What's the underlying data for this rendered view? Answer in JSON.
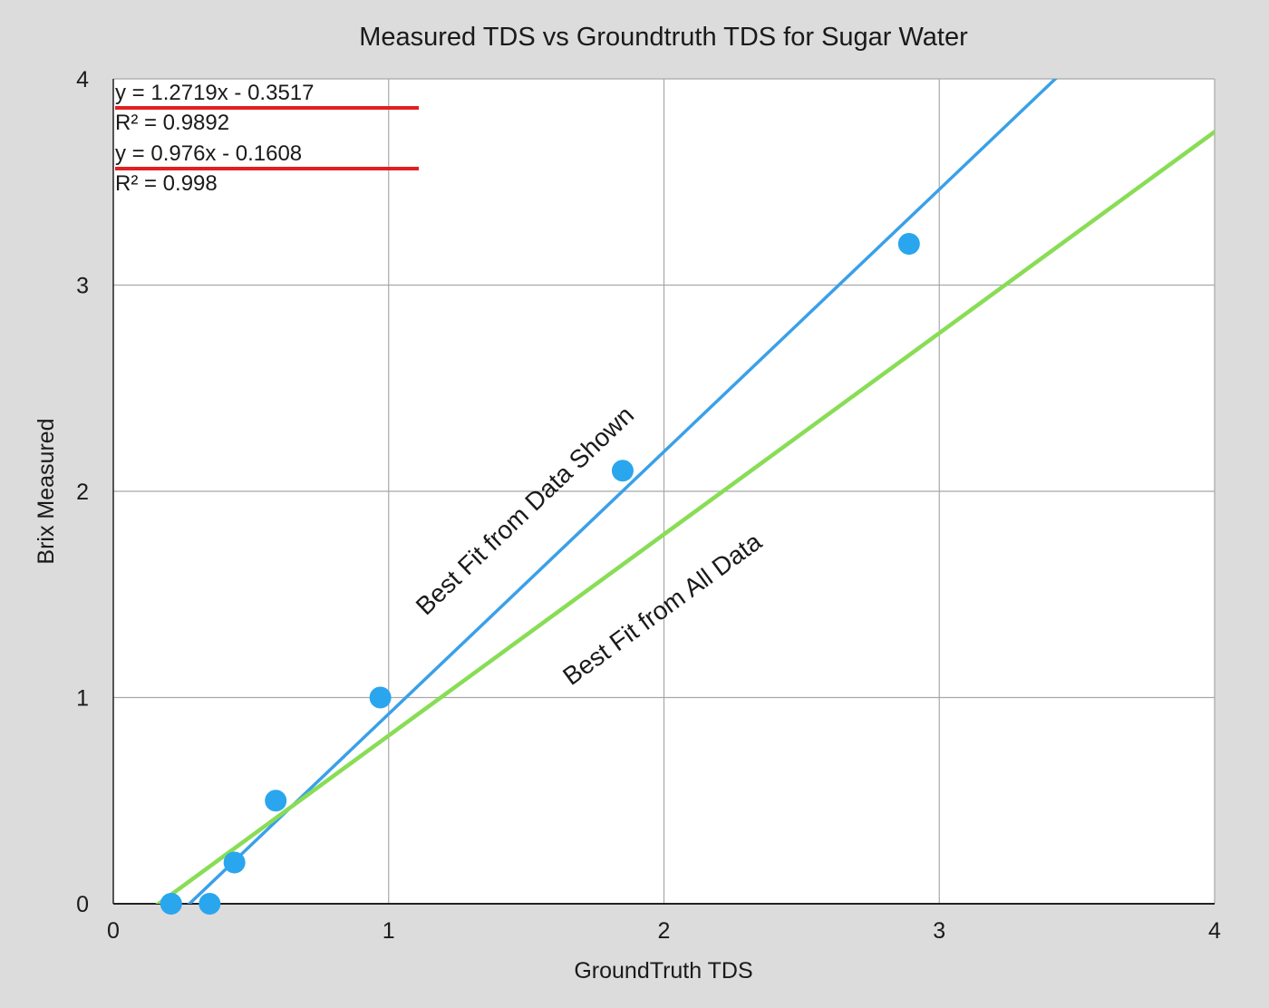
{
  "chart_data": {
    "type": "scatter",
    "title": "Measured TDS vs Groundtruth TDS for Sugar Water",
    "xlabel": "GroundTruth TDS",
    "ylabel": "Brix Measured",
    "xlim": [
      0,
      4
    ],
    "ylim": [
      0,
      4
    ],
    "x_ticks": [
      0,
      1,
      2,
      3,
      4
    ],
    "y_ticks": [
      0,
      1,
      2,
      3,
      4
    ],
    "grid": true,
    "points": [
      {
        "x": 0.21,
        "y": 0.0
      },
      {
        "x": 0.35,
        "y": 0.0
      },
      {
        "x": 0.44,
        "y": 0.2
      },
      {
        "x": 0.59,
        "y": 0.5
      },
      {
        "x": 0.97,
        "y": 1.0
      },
      {
        "x": 1.85,
        "y": 2.1
      },
      {
        "x": 2.89,
        "y": 3.2
      }
    ],
    "trendlines": [
      {
        "slope": 1.2719,
        "intercept": -0.3517,
        "equation": "y = 1.2719x - 0.3517",
        "r2": "R² = 0.9892",
        "color": "#3aa0e8"
      },
      {
        "slope": 0.976,
        "intercept": -0.1608,
        "equation": "y = 0.976x - 0.1608",
        "r2": "R² = 0.998",
        "color": "#88dd55"
      }
    ],
    "annotations": [
      {
        "text": "Best Fit from Data Shown",
        "line": 0
      },
      {
        "text": "Best Fit from All Data",
        "line": 1
      }
    ],
    "colors": {
      "points": "#2aa6ee",
      "underline": "#e02020",
      "background": "#dcdcdc",
      "plot_area": "#ffffff",
      "grid": "#a8a8a8"
    }
  }
}
